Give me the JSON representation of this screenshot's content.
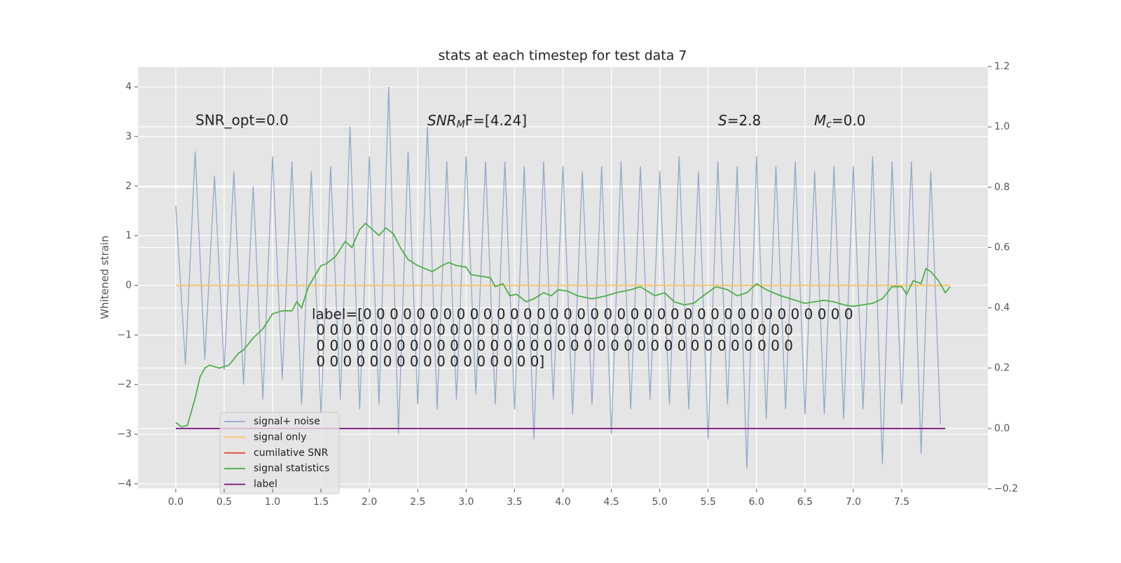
{
  "chart_data": {
    "type": "line",
    "title": "stats at each timestep for test data 7",
    "ylabel": "Whitened strain",
    "xlim": [
      -0.39,
      8.39
    ],
    "ylim": [
      -4.1,
      4.41
    ],
    "y2lim": [
      -0.2,
      1.2
    ],
    "xticks": [
      {
        "value": 0,
        "label": "0.0"
      },
      0.5,
      {
        "value": 1,
        "label": "1.0"
      },
      1.5,
      {
        "value": 2,
        "label": "2.0"
      },
      2.5,
      {
        "value": 3,
        "label": "3.0"
      },
      3.5,
      {
        "value": 4,
        "label": "4.0"
      },
      4.5,
      {
        "value": 5,
        "label": "5.0"
      },
      5.5,
      {
        "value": 6,
        "label": "6.0"
      },
      6.5,
      {
        "value": 7,
        "label": "7.0"
      },
      7.5
    ],
    "yticks": [
      {
        "value": -4,
        "label": "−4"
      },
      {
        "value": -3,
        "label": "−3"
      },
      {
        "value": -2,
        "label": "−2"
      },
      {
        "value": -1,
        "label": "−1"
      },
      0,
      1,
      2,
      3,
      4
    ],
    "y2ticks": [
      {
        "value": -0.2,
        "label": "−0.2"
      },
      {
        "value": 0,
        "label": "0.0"
      },
      0.2,
      0.4,
      0.6,
      0.8,
      {
        "value": 1,
        "label": "1.0"
      },
      1.2
    ],
    "grid": true,
    "legend": "lower left",
    "annotations": {
      "snr_opt": "SNR_opt=0.0",
      "snr_mf": {
        "base": "SNR",
        "sub": "M",
        "rest": "F=[4.24]"
      },
      "s": {
        "base": "S",
        "rest": "=2.8"
      },
      "mc": {
        "base": "M",
        "sub": "c",
        "rest": "=0.0"
      },
      "label_lines": [
        "label=[0 0 0 0 0 0 0 0 0 0 0 0 0 0 0 0 0 0 0 0 0 0 0 0 0 0 0 0 0 0 0 0 0 0 0 0 0",
        " 0 0 0 0 0 0 0 0 0 0 0 0 0 0 0 0 0 0 0 0 0 0 0 0 0 0 0 0 0 0 0 0 0 0 0 0",
        " 0 0 0 0 0 0 0 0 0 0 0 0 0 0 0 0 0 0 0 0 0 0 0 0 0 0 0 0 0 0 0 0 0 0 0 0",
        " 0 0 0 0 0 0 0 0 0 0 0 0 0 0 0 0 0]"
      ]
    },
    "series": [
      {
        "name": "signal+ noise",
        "color": "#92a8cd",
        "axis": "y",
        "x": [
          0,
          0.1,
          0.2,
          0.3,
          0.4,
          0.5,
          0.6,
          0.7,
          0.8,
          0.9,
          1,
          1.1,
          1.2,
          1.3,
          1.4,
          1.5,
          1.6,
          1.7,
          1.8,
          1.9,
          2,
          2.1,
          2.2,
          2.3,
          2.4,
          2.5,
          2.6,
          2.7,
          2.8,
          2.9,
          3,
          3.1,
          3.2,
          3.3,
          3.4,
          3.5,
          3.6,
          3.7,
          3.8,
          3.9,
          4,
          4.1,
          4.2,
          4.3,
          4.4,
          4.5,
          4.6,
          4.7,
          4.8,
          4.9,
          5,
          5.1,
          5.2,
          5.3,
          5.4,
          5.5,
          5.6,
          5.7,
          5.8,
          5.9,
          6,
          6.1,
          6.2,
          6.3,
          6.4,
          6.5,
          6.6,
          6.7,
          6.8,
          6.9,
          7,
          7.1,
          7.2,
          7.3,
          7.4,
          7.5,
          7.6,
          7.7,
          7.8,
          7.9
        ],
        "values": [
          1.6,
          -1.6,
          2.7,
          -1.5,
          2.2,
          -1.7,
          2.3,
          -2.0,
          2.0,
          -2.3,
          2.6,
          -1.9,
          2.5,
          -2.4,
          2.3,
          -2.6,
          2.4,
          -2.3,
          3.2,
          -2.5,
          2.6,
          -2.4,
          4.0,
          -3.0,
          2.7,
          -2.4,
          3.2,
          -2.5,
          2.5,
          -2.3,
          2.6,
          -2.2,
          2.5,
          -2.4,
          2.5,
          -2.5,
          2.4,
          -3.1,
          2.5,
          -2.3,
          2.4,
          -2.6,
          2.3,
          -2.4,
          2.4,
          -3.0,
          2.5,
          -2.5,
          2.4,
          -2.3,
          2.3,
          -2.4,
          2.6,
          -2.5,
          2.3,
          -3.1,
          2.5,
          -2.4,
          2.4,
          -3.7,
          2.6,
          -2.7,
          2.4,
          -2.5,
          2.5,
          -2.6,
          2.3,
          -2.6,
          2.4,
          -2.7,
          2.4,
          -2.5,
          2.6,
          -3.6,
          2.5,
          -2.4,
          2.5,
          -3.4,
          2.3,
          -2.8
        ]
      },
      {
        "name": "signal only",
        "color": "#fbc15e",
        "axis": "y",
        "x": [
          0,
          8
        ],
        "values": [
          0,
          0
        ]
      },
      {
        "name": "cumilative SNR",
        "color": "#e24a33",
        "axis": "y2",
        "x": [],
        "values": []
      },
      {
        "name": "signal statistics",
        "color": "#4daf4a",
        "axis": "y2",
        "x": [
          0,
          0.06,
          0.12,
          0.2,
          0.25,
          0.3,
          0.35,
          0.45,
          0.55,
          0.65,
          0.7,
          0.8,
          0.9,
          1.0,
          1.1,
          1.2,
          1.25,
          1.3,
          1.37,
          1.5,
          1.55,
          1.65,
          1.75,
          1.82,
          1.9,
          1.96,
          2.1,
          2.17,
          2.25,
          2.32,
          2.4,
          2.5,
          2.65,
          2.75,
          2.82,
          2.9,
          3.0,
          3.05,
          3.15,
          3.25,
          3.3,
          3.38,
          3.45,
          3.52,
          3.62,
          3.7,
          3.8,
          3.88,
          3.95,
          4.05,
          4.15,
          4.3,
          4.45,
          4.55,
          4.7,
          4.8,
          4.95,
          5.05,
          5.15,
          5.25,
          5.35,
          5.45,
          5.58,
          5.7,
          5.8,
          5.9,
          6.0,
          6.1,
          6.25,
          6.35,
          6.5,
          6.6,
          6.7,
          6.8,
          6.9,
          7.0,
          7.1,
          7.2,
          7.3,
          7.4,
          7.5,
          7.55,
          7.62,
          7.7,
          7.75,
          7.8,
          7.88,
          7.95,
          8.0
        ],
        "values": [
          0.02,
          0.005,
          0.01,
          0.1,
          0.17,
          0.2,
          0.21,
          0.2,
          0.21,
          0.25,
          0.26,
          0.3,
          0.33,
          0.38,
          0.39,
          0.39,
          0.42,
          0.4,
          0.47,
          0.54,
          0.545,
          0.57,
          0.62,
          0.6,
          0.66,
          0.68,
          0.64,
          0.665,
          0.645,
          0.6,
          0.56,
          0.54,
          0.52,
          0.54,
          0.55,
          0.54,
          0.535,
          0.51,
          0.505,
          0.5,
          0.47,
          0.48,
          0.44,
          0.445,
          0.42,
          0.43,
          0.45,
          0.44,
          0.46,
          0.455,
          0.44,
          0.43,
          0.44,
          0.45,
          0.46,
          0.47,
          0.44,
          0.45,
          0.42,
          0.41,
          0.415,
          0.44,
          0.47,
          0.46,
          0.44,
          0.45,
          0.48,
          0.46,
          0.44,
          0.43,
          0.415,
          0.42,
          0.425,
          0.42,
          0.41,
          0.405,
          0.41,
          0.415,
          0.43,
          0.47,
          0.47,
          0.445,
          0.49,
          0.48,
          0.53,
          0.52,
          0.49,
          0.45,
          0.47
        ]
      },
      {
        "name": "label",
        "color": "#7b0f7f",
        "axis": "y2",
        "x": [
          0,
          7.95
        ],
        "values": [
          0,
          0
        ]
      }
    ]
  }
}
